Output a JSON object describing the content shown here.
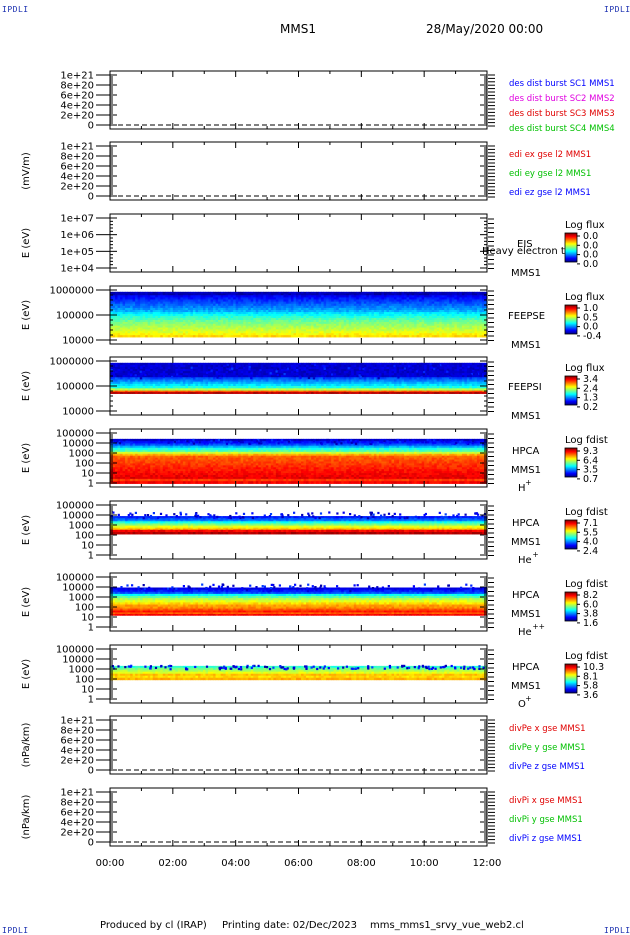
{
  "corner_mark": "IPDLI",
  "header": {
    "spacecraft": "MMS1",
    "date": "28/May/2020 00:00"
  },
  "footer": {
    "produced": "Produced by cl (IRAP)",
    "printing": "Printing date: 02/Dec/2023",
    "file": "mms_mms1_srvy_vue_web2.cl"
  },
  "chart_data": [
    {
      "type": "line",
      "panel": 1,
      "ylabel": "",
      "y_ticks": [
        "1e+21",
        "8e+20",
        "6e+20",
        "4e+20",
        "2e+20",
        "0"
      ],
      "series": [
        {
          "name": "des dist burst SC1 MMS1",
          "color": "#0000ff"
        },
        {
          "name": "des dist burst SC2 MMS2",
          "color": "#e000e0"
        },
        {
          "name": "des dist burst SC3 MMS3",
          "color": "#e00000"
        },
        {
          "name": "des dist burst SC4 MMS4",
          "color": "#00c000"
        }
      ]
    },
    {
      "type": "line",
      "panel": 2,
      "ylabel": "(mV/m)",
      "y_ticks": [
        "1e+21",
        "8e+20",
        "6e+20",
        "4e+20",
        "2e+20",
        "0"
      ],
      "series": [
        {
          "name": "edi ex gse l2 MMS1",
          "color": "#e00000"
        },
        {
          "name": "edi ey gse l2 MMS1",
          "color": "#00c000"
        },
        {
          "name": "edi ez gse l2 MMS1",
          "color": "#0000ff"
        }
      ]
    },
    {
      "type": "heatmap",
      "panel": 3,
      "ylabel": "E (eV)",
      "y_ticks": [
        "1e+07",
        "1e+06",
        "1e+05",
        "1e+04"
      ],
      "labels": [
        "EIS",
        "Heavy electron to",
        "MMS1"
      ],
      "cbar_title": "Log flux",
      "cbar_ticks": [
        "0.0",
        "0.0",
        "0.0",
        "0.0"
      ]
    },
    {
      "type": "heatmap",
      "panel": 4,
      "ylabel": "E (eV)",
      "y_ticks": [
        "1000000",
        "100000",
        "10000"
      ],
      "labels": [
        "FEEPSE",
        "MMS1"
      ],
      "cbar_title": "Log flux",
      "cbar_ticks": [
        "1.0",
        "0.5",
        "0.0",
        "-0.4"
      ]
    },
    {
      "type": "heatmap",
      "panel": 5,
      "ylabel": "E (eV)",
      "y_ticks": [
        "1000000",
        "100000",
        "10000"
      ],
      "labels": [
        "FEEPSI",
        "MMS1"
      ],
      "cbar_title": "Log flux",
      "cbar_ticks": [
        "3.4",
        "2.4",
        "1.3",
        "0.2"
      ]
    },
    {
      "type": "heatmap",
      "panel": 6,
      "ylabel": "E (eV)",
      "y_ticks": [
        "100000",
        "10000",
        "1000",
        "100",
        "10",
        "1"
      ],
      "labels": [
        "HPCA",
        "MMS1"
      ],
      "species": "H",
      "species_sup": "+",
      "cbar_title": "Log fdist",
      "cbar_ticks": [
        "9.3",
        "6.4",
        "3.5",
        "0.7"
      ]
    },
    {
      "type": "heatmap",
      "panel": 7,
      "ylabel": "E (eV)",
      "y_ticks": [
        "100000",
        "10000",
        "1000",
        "100",
        "10",
        "1"
      ],
      "labels": [
        "HPCA",
        "MMS1"
      ],
      "species": "He",
      "species_sup": "+",
      "cbar_title": "Log fdist",
      "cbar_ticks": [
        "7.1",
        "5.5",
        "4.0",
        "2.4"
      ]
    },
    {
      "type": "heatmap",
      "panel": 8,
      "ylabel": "E (eV)",
      "y_ticks": [
        "100000",
        "10000",
        "1000",
        "100",
        "10",
        "1"
      ],
      "labels": [
        "HPCA",
        "MMS1"
      ],
      "species": "He",
      "species_sup": "++",
      "cbar_title": "Log fdist",
      "cbar_ticks": [
        "8.2",
        "6.0",
        "3.8",
        "1.6"
      ]
    },
    {
      "type": "heatmap",
      "panel": 9,
      "ylabel": "E (eV)",
      "y_ticks": [
        "100000",
        "10000",
        "1000",
        "100",
        "10",
        "1"
      ],
      "labels": [
        "HPCA",
        "MMS1"
      ],
      "species": "O",
      "species_sup": "+",
      "cbar_title": "Log fdist",
      "cbar_ticks": [
        "10.3",
        "8.1",
        "5.8",
        "3.6"
      ]
    },
    {
      "type": "line",
      "panel": 10,
      "ylabel": "(nPa/km)",
      "y_ticks": [
        "1e+21",
        "8e+20",
        "6e+20",
        "4e+20",
        "2e+20",
        "0"
      ],
      "series": [
        {
          "name": "divPe x gse MMS1",
          "color": "#e00000"
        },
        {
          "name": "divPe y gse MMS1",
          "color": "#00c000"
        },
        {
          "name": "divPe z gse MMS1",
          "color": "#0000ff"
        }
      ]
    },
    {
      "type": "line",
      "panel": 11,
      "ylabel": "(nPa/km)",
      "y_ticks": [
        "1e+21",
        "8e+20",
        "6e+20",
        "4e+20",
        "2e+20",
        "0"
      ],
      "series": [
        {
          "name": "divPi x gse MMS1",
          "color": "#e00000"
        },
        {
          "name": "divPi y gse MMS1",
          "color": "#00c000"
        },
        {
          "name": "divPi z gse MMS1",
          "color": "#0000ff"
        }
      ]
    }
  ],
  "x_axis": {
    "ticks": [
      "00:00",
      "02:00",
      "04:00",
      "06:00",
      "08:00",
      "10:00",
      "12:00"
    ]
  }
}
